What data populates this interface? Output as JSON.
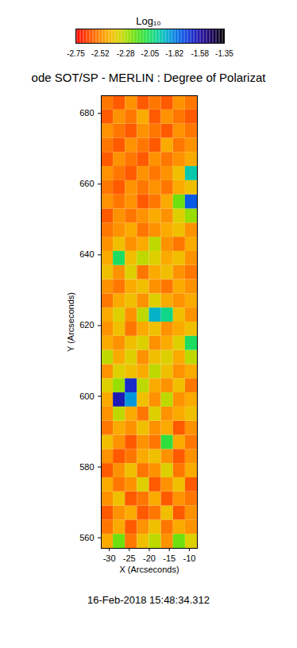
{
  "chart_data": {
    "type": "heatmap",
    "title": "ode SOT/SP - MERLIN : Degree of Polarizat",
    "x_label": "X (Arcseconds)",
    "y_label": "Y (Arcseconds)",
    "caption": "16-Feb-2018 15:48:34.312",
    "xlim": [
      -32,
      -8
    ],
    "ylim": [
      557,
      685
    ],
    "xticks": [
      -30,
      -25,
      -20,
      -15,
      -10
    ],
    "yticks": [
      560,
      580,
      600,
      620,
      640,
      660,
      680
    ],
    "x_edges": [
      -32,
      -29,
      -26,
      -23,
      -20,
      -17,
      -14,
      -11,
      -8
    ],
    "y_edges": [
      557,
      561,
      565,
      569,
      573,
      577,
      581,
      585,
      589,
      593,
      597,
      601,
      605,
      609,
      613,
      617,
      621,
      625,
      629,
      633,
      637,
      641,
      645,
      649,
      653,
      657,
      661,
      665,
      669,
      673,
      677,
      681,
      685
    ],
    "values": [
      [
        -2.45,
        -2.2,
        -2.55,
        -2.4,
        -2.3,
        -2.5,
        -2.2,
        -2.35
      ],
      [
        -2.55,
        -2.45,
        -2.6,
        -2.5,
        -2.4,
        -2.55,
        -2.45,
        -2.5
      ],
      [
        -2.6,
        -2.5,
        -2.45,
        -2.6,
        -2.55,
        -2.4,
        -2.6,
        -2.5
      ],
      [
        -2.5,
        -2.4,
        -2.6,
        -2.55,
        -2.45,
        -2.6,
        -2.5,
        -2.55
      ],
      [
        -2.45,
        -2.55,
        -2.5,
        -2.35,
        -2.6,
        -2.5,
        -2.4,
        -2.6
      ],
      [
        -2.6,
        -2.5,
        -2.4,
        -2.55,
        -2.5,
        -2.35,
        -2.55,
        -2.45
      ],
      [
        -2.5,
        -2.6,
        -2.55,
        -2.45,
        -2.4,
        -2.5,
        -2.6,
        -2.5
      ],
      [
        -2.4,
        -2.5,
        -2.6,
        -2.5,
        -2.55,
        -2.1,
        -2.45,
        -2.55
      ],
      [
        -2.55,
        -2.45,
        -2.5,
        -2.4,
        -2.5,
        -2.45,
        -2.6,
        -2.5
      ],
      [
        -2.5,
        -2.3,
        -2.45,
        -2.55,
        -2.35,
        -2.5,
        -2.45,
        -2.4
      ],
      [
        -2.45,
        -1.6,
        -1.85,
        -2.4,
        -2.5,
        -2.3,
        -2.5,
        -2.45
      ],
      [
        -2.35,
        -2.25,
        -1.65,
        -2.3,
        -2.45,
        -2.5,
        -2.4,
        -2.55
      ],
      [
        -2.5,
        -2.35,
        -2.4,
        -2.45,
        -2.3,
        -2.4,
        -2.5,
        -2.45
      ],
      [
        -2.3,
        -2.45,
        -2.35,
        -2.5,
        -2.4,
        -2.35,
        -2.45,
        -2.3
      ],
      [
        -2.45,
        -2.5,
        -2.4,
        -2.35,
        -2.5,
        -2.45,
        -2.35,
        -2.05
      ],
      [
        -2.5,
        -2.4,
        -2.55,
        -2.45,
        -2.4,
        -2.5,
        -2.45,
        -2.4
      ],
      [
        -2.45,
        -2.35,
        -2.5,
        -2.3,
        -1.9,
        -2.0,
        -2.4,
        -2.5
      ],
      [
        -2.55,
        -2.45,
        -2.4,
        -2.5,
        -2.35,
        -2.45,
        -2.5,
        -2.45
      ],
      [
        -2.5,
        -2.55,
        -2.45,
        -2.4,
        -2.5,
        -2.55,
        -2.45,
        -2.5
      ],
      [
        -2.4,
        -2.5,
        -2.35,
        -2.55,
        -2.45,
        -2.4,
        -2.5,
        -2.55
      ],
      [
        -2.45,
        -2.05,
        -2.4,
        -2.3,
        -2.35,
        -2.45,
        -2.4,
        -2.5
      ],
      [
        -2.5,
        -2.4,
        -2.5,
        -2.45,
        -2.3,
        -2.5,
        -2.55,
        -2.45
      ],
      [
        -2.55,
        -2.5,
        -2.45,
        -2.55,
        -2.5,
        -2.45,
        -2.4,
        -2.5
      ],
      [
        -2.6,
        -2.5,
        -2.55,
        -2.5,
        -2.45,
        -2.5,
        -2.35,
        -2.25
      ],
      [
        -2.5,
        -2.55,
        -2.5,
        -2.6,
        -2.55,
        -2.45,
        -2.2,
        -1.75
      ],
      [
        -2.55,
        -2.6,
        -2.5,
        -2.55,
        -2.5,
        -2.55,
        -2.45,
        -2.4
      ],
      [
        -2.5,
        -2.55,
        -2.6,
        -2.5,
        -2.55,
        -2.5,
        -2.4,
        -1.95
      ],
      [
        -2.6,
        -2.5,
        -2.55,
        -2.6,
        -2.5,
        -2.55,
        -2.5,
        -2.45
      ],
      [
        -2.55,
        -2.6,
        -2.5,
        -2.55,
        -2.6,
        -2.45,
        -2.55,
        -2.5
      ],
      [
        -2.5,
        -2.55,
        -2.6,
        -2.5,
        -2.55,
        -2.6,
        -2.5,
        -2.55
      ],
      [
        -2.6,
        -2.5,
        -2.55,
        -2.45,
        -2.6,
        -2.5,
        -2.55,
        -2.6
      ],
      [
        -2.55,
        -2.6,
        -2.5,
        -2.6,
        -2.55,
        -2.6,
        -2.5,
        -2.55
      ]
    ],
    "colorbar_label": "Log₁₀",
    "colorbar_range": [
      -2.75,
      -1.35
    ],
    "colorbar_ticks": [
      -2.75,
      -2.52,
      -2.28,
      -2.05,
      -1.82,
      -1.58,
      -1.35
    ]
  }
}
